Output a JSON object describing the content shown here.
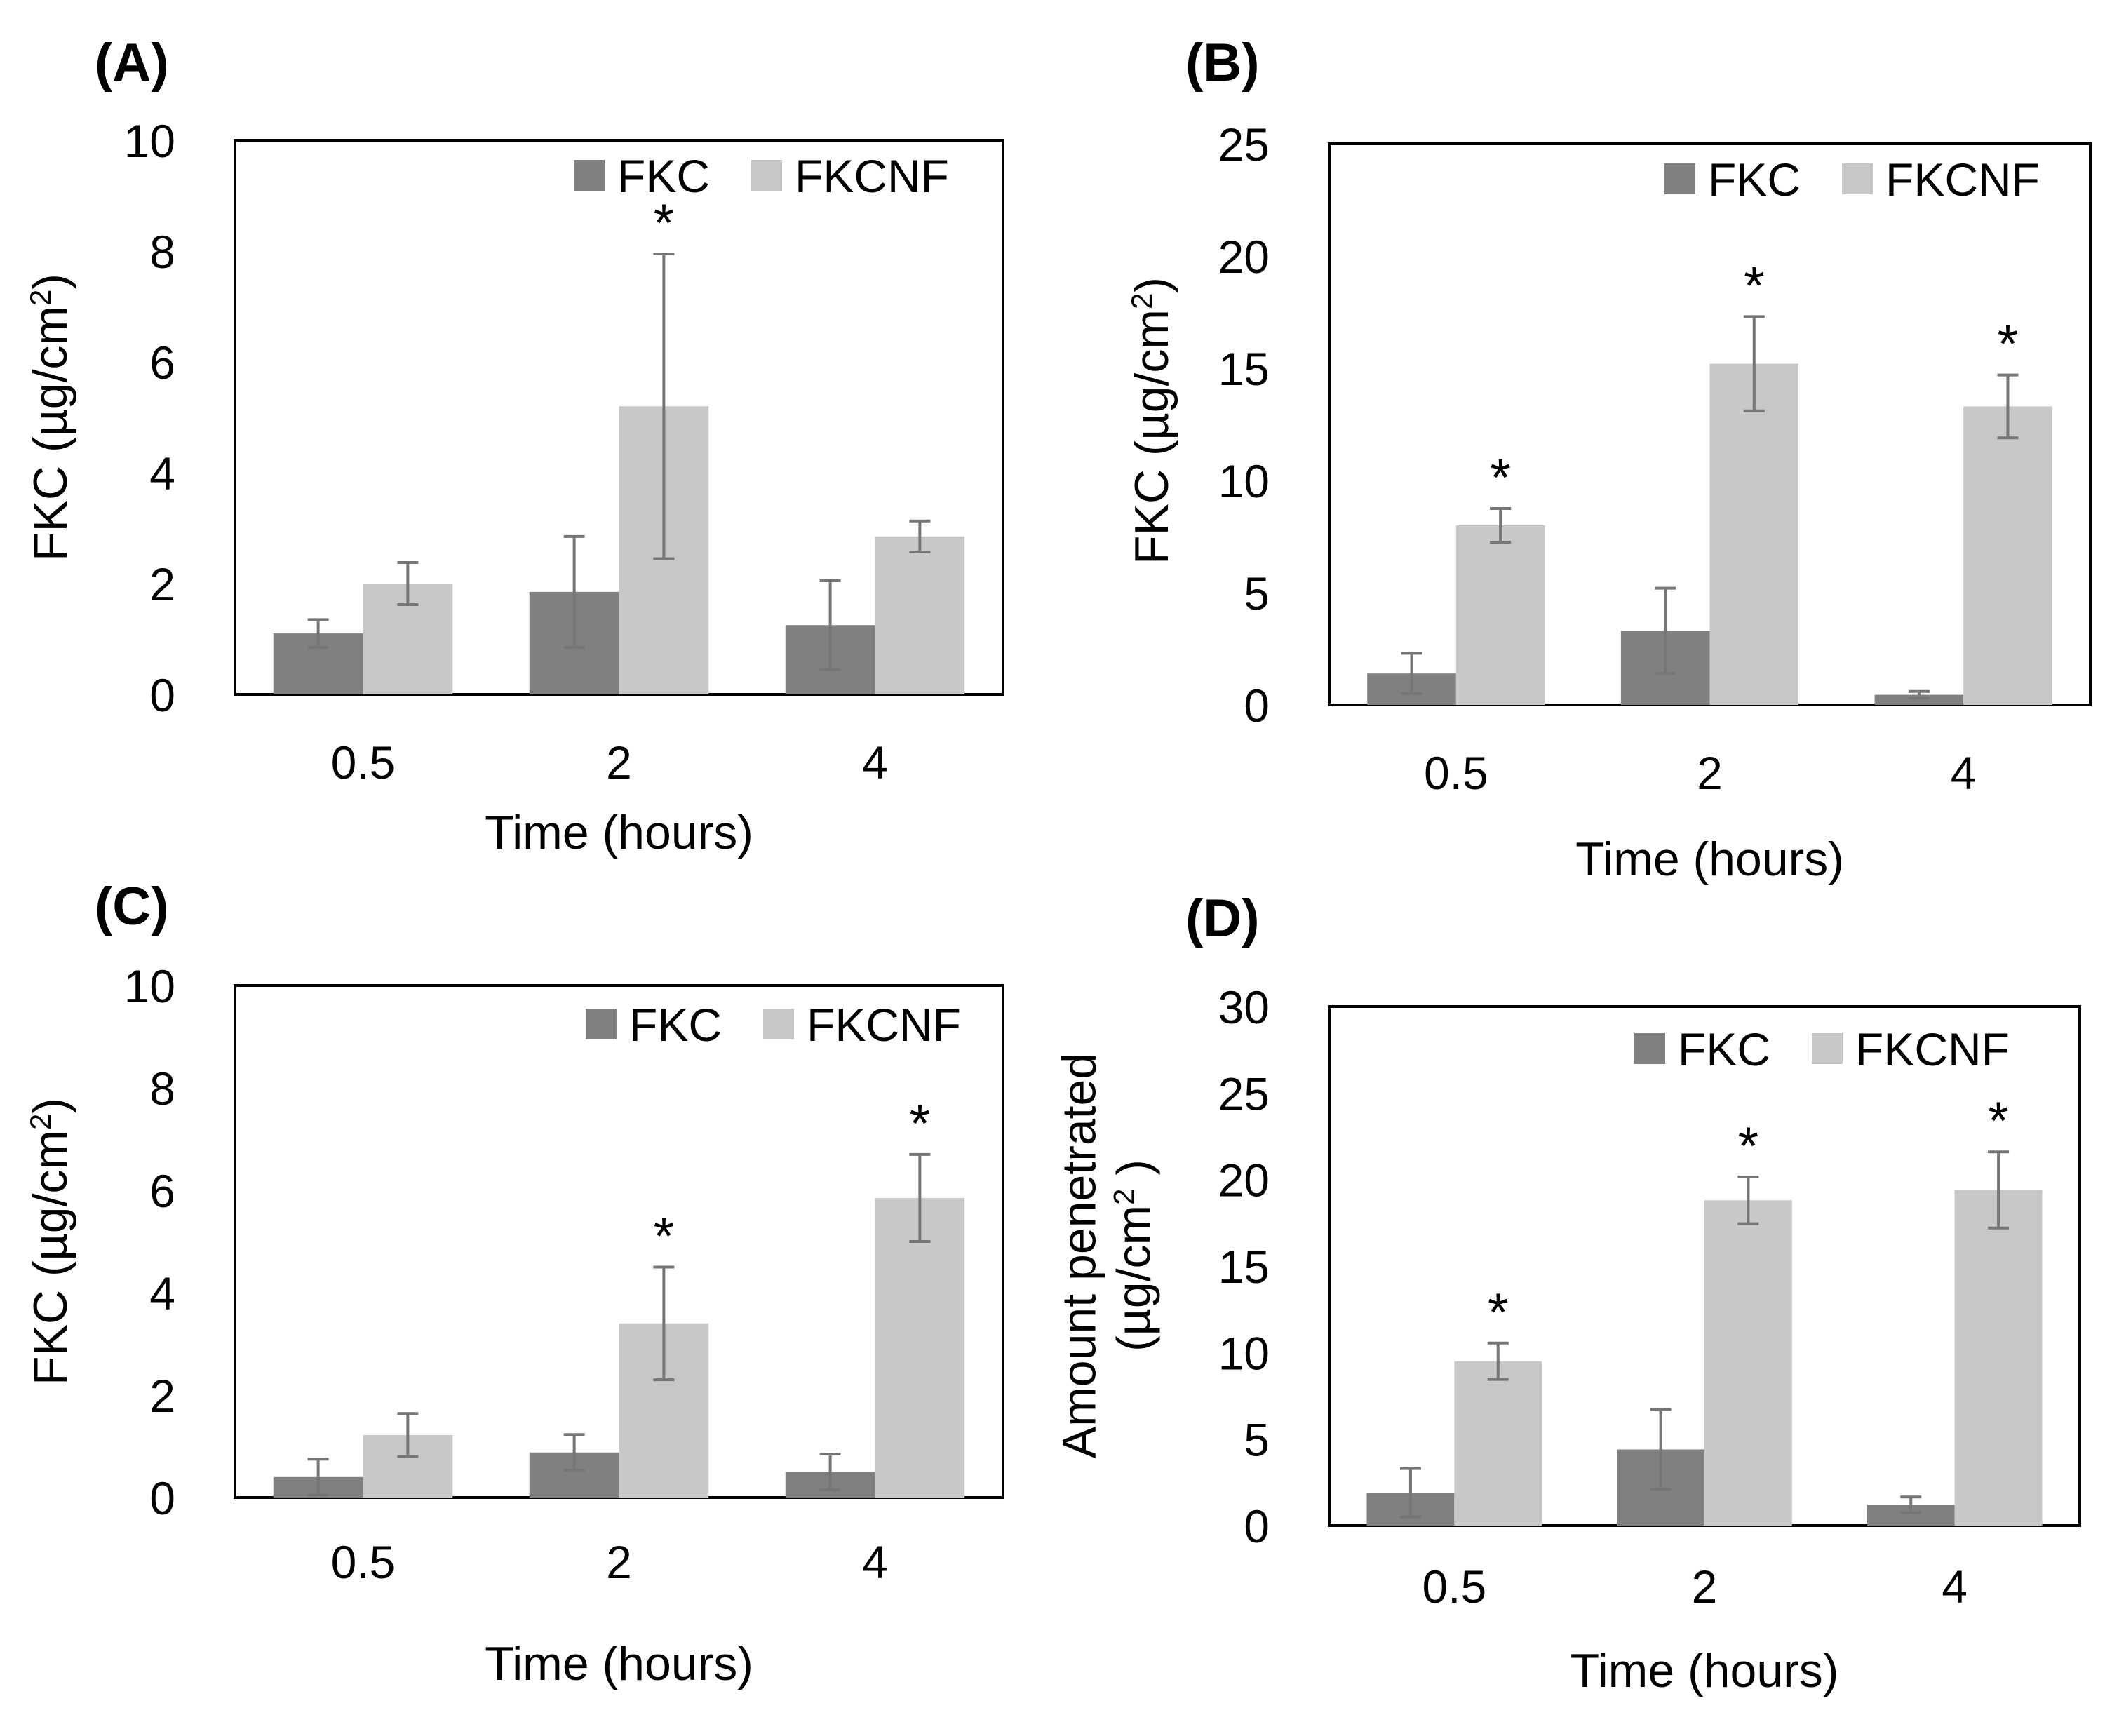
{
  "colors": {
    "FKC": "#808080",
    "FKCNF": "#c8c8c8",
    "error": "#767676",
    "frame": "#000000"
  },
  "chart_data": [
    {
      "type": "bar",
      "panel_label": "(A)",
      "categories": [
        "0.5",
        "2",
        "4"
      ],
      "series": [
        {
          "name": "FKC",
          "values": [
            1.1,
            1.85,
            1.25
          ],
          "errors": [
            0.25,
            1.0,
            0.8
          ]
        },
        {
          "name": "FKCNF",
          "values": [
            2.0,
            5.2,
            2.85
          ],
          "errors": [
            0.38,
            2.75,
            0.28
          ]
        }
      ],
      "significance": [
        "",
        "*",
        ""
      ],
      "xlabel": "Time (hours)",
      "ylabel_main": "FKC (µg/cm",
      "ylabel_sup": "2",
      "ylabel_tail": ")",
      "ylim": [
        0,
        10
      ],
      "yticks": [
        0,
        2,
        4,
        6,
        8,
        10
      ],
      "ytick_labels": [
        "0",
        "2",
        "4",
        "6",
        "8",
        "10"
      ],
      "legend": "top-right"
    },
    {
      "type": "bar",
      "panel_label": "(B)",
      "categories": [
        "0.5",
        "2",
        "4"
      ],
      "series": [
        {
          "name": "FKC",
          "values": [
            1.4,
            3.3,
            0.45
          ],
          "errors": [
            0.9,
            1.9,
            0.15
          ]
        },
        {
          "name": "FKCNF",
          "values": [
            8.0,
            15.2,
            13.3
          ],
          "errors": [
            0.75,
            2.1,
            1.4
          ]
        }
      ],
      "significance": [
        "*",
        "*",
        "*"
      ],
      "xlabel": "Time (hours)",
      "ylabel_main": "FKC (µg/cm",
      "ylabel_sup": "2",
      "ylabel_tail": ")",
      "ylim": [
        0,
        25
      ],
      "yticks": [
        0,
        5,
        10,
        15,
        20,
        25
      ],
      "ytick_labels": [
        "0",
        "5",
        "10",
        "15",
        "20",
        "25"
      ],
      "legend": "top-right"
    },
    {
      "type": "bar",
      "panel_label": "(C)",
      "categories": [
        "0.5",
        "2",
        "4"
      ],
      "series": [
        {
          "name": "FKC",
          "values": [
            0.4,
            0.88,
            0.5
          ],
          "errors": [
            0.35,
            0.35,
            0.35
          ]
        },
        {
          "name": "FKCNF",
          "values": [
            1.22,
            3.4,
            5.85
          ],
          "errors": [
            0.42,
            1.1,
            0.85
          ]
        }
      ],
      "significance": [
        "",
        "*",
        "*"
      ],
      "xlabel": "Time (hours)",
      "ylabel_main": "FKC (µg/cm",
      "ylabel_sup": "2",
      "ylabel_tail": ")",
      "ylim": [
        0,
        10
      ],
      "yticks": [
        0,
        2,
        4,
        6,
        8,
        10
      ],
      "ytick_labels": [
        "0",
        "2",
        "4",
        "6",
        "8",
        "10"
      ],
      "legend": "top-right"
    },
    {
      "type": "bar",
      "panel_label": "(D)",
      "categories": [
        "0.5",
        "2",
        "4"
      ],
      "series": [
        {
          "name": "FKC",
          "values": [
            1.9,
            4.4,
            1.2
          ],
          "errors": [
            1.4,
            2.3,
            0.45
          ]
        },
        {
          "name": "FKCNF",
          "values": [
            9.5,
            18.8,
            19.4
          ],
          "errors": [
            1.05,
            1.35,
            2.2
          ]
        }
      ],
      "significance": [
        "*",
        "*",
        "*"
      ],
      "xlabel": "Time (hours)",
      "ylabel_line1": "Amount penetrated",
      "ylabel_main": "(µg/cm",
      "ylabel_sup": "2",
      "ylabel_tail": " )",
      "ylim": [
        0,
        30
      ],
      "yticks": [
        0,
        5,
        10,
        15,
        20,
        25,
        30
      ],
      "ytick_labels": [
        "0",
        "5",
        "10",
        "15",
        "20",
        "25",
        "30"
      ],
      "legend": "top-right"
    }
  ]
}
